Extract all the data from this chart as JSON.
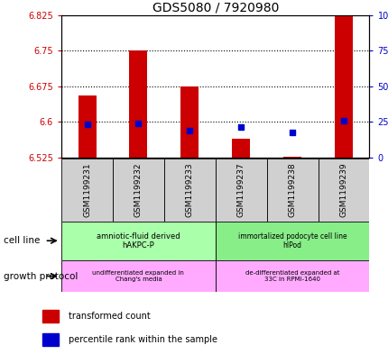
{
  "title": "GDS5080 / 7920980",
  "samples": [
    "GSM1199231",
    "GSM1199232",
    "GSM1199233",
    "GSM1199237",
    "GSM1199238",
    "GSM1199239"
  ],
  "red_values": [
    6.655,
    6.75,
    6.675,
    6.565,
    6.527,
    6.86
  ],
  "blue_values": [
    6.595,
    6.597,
    6.582,
    6.59,
    6.578,
    6.602
  ],
  "ylim_left": [
    6.525,
    6.825
  ],
  "ylim_right": [
    0,
    100
  ],
  "yticks_left": [
    6.525,
    6.6,
    6.675,
    6.75,
    6.825
  ],
  "yticks_right": [
    0,
    25,
    50,
    75,
    100
  ],
  "ytick_labels_left": [
    "6.525",
    "6.6",
    "6.675",
    "6.75",
    "6.825"
  ],
  "ytick_labels_right": [
    "0",
    "25",
    "50",
    "75",
    "100%"
  ],
  "bar_color": "#cc0000",
  "dot_color": "#0000cc",
  "base_value": 6.525,
  "cell_line_group1": "amniotic-fluid derived\nhAKPC-P",
  "cell_line_group2": "immortalized podocyte cell line\nhIPod",
  "growth_proto_group1": "undifferentiated expanded in\nChang's media",
  "growth_proto_group2": "de-differentiated expanded at\n33C in RPMI-1640",
  "cell_line_color1": "#aaffaa",
  "cell_line_color2": "#88ee88",
  "growth_color": "#ffaaff",
  "legend_red_label": "transformed count",
  "legend_blue_label": "percentile rank within the sample",
  "gridline_y": [
    6.6,
    6.675,
    6.75
  ],
  "label_cell_line": "cell line",
  "label_growth": "growth protocol"
}
